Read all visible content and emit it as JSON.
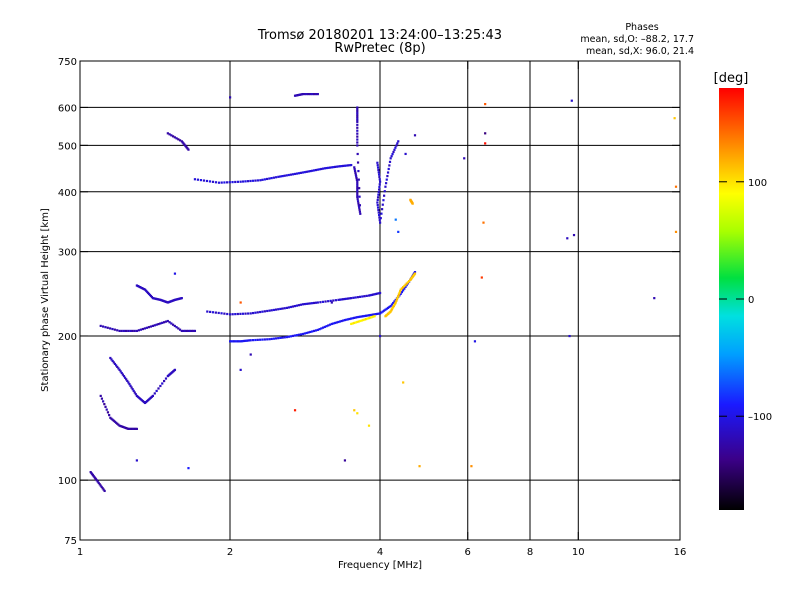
{
  "chart_data": {
    "type": "scatter",
    "title": "Tromsø 20180201 13:24:00–13:25:43",
    "subtitle": "RwPretec (8p)",
    "phases_header": "Phases",
    "phases_line1": "mean, sd,O: –88.2, 17.7",
    "phases_line2": "mean, sd,X:  96.0, 21.4",
    "xlabel": "Frequency [MHz]",
    "ylabel": "Stationary phase Virtual Height [km]",
    "x_scale": "log",
    "y_scale": "log",
    "xlim": [
      1,
      16
    ],
    "ylim": [
      75,
      750
    ],
    "x_ticks": [
      1,
      2,
      4,
      6,
      8,
      10,
      16
    ],
    "x_tick_labels": [
      "1",
      "2",
      "4",
      "6",
      "8",
      "10",
      "16"
    ],
    "y_ticks": [
      75,
      100,
      200,
      300,
      400,
      500,
      600,
      750
    ],
    "y_tick_labels": [
      "75",
      "100",
      "200",
      "300",
      "400",
      "500",
      "600",
      "750"
    ],
    "x_gridlines": [
      2,
      4,
      6,
      8,
      10
    ],
    "y_gridlines": [
      100,
      200,
      300,
      400,
      500,
      600
    ],
    "colorbar": {
      "label": "[deg]",
      "range": [
        -180,
        180
      ],
      "ticks": [
        100,
        0,
        -100
      ],
      "tick_labels": [
        "100",
        "0",
        "–100"
      ]
    },
    "series": [
      {
        "points": [
          [
            2.0,
            195
          ],
          [
            2.1,
            195
          ],
          [
            2.2,
            196
          ],
          [
            2.4,
            197
          ],
          [
            2.6,
            199
          ],
          [
            2.8,
            202
          ],
          [
            3.0,
            206
          ],
          [
            3.2,
            212
          ],
          [
            3.4,
            216
          ],
          [
            3.6,
            219
          ],
          [
            3.8,
            221
          ],
          [
            4.0,
            223
          ],
          [
            4.2,
            231
          ],
          [
            4.4,
            245
          ],
          [
            4.6,
            262
          ],
          [
            4.7,
            272
          ]
        ],
        "phase": -95
      },
      {
        "points": [
          [
            1.8,
            225
          ],
          [
            2.0,
            222
          ],
          [
            2.2,
            223
          ],
          [
            2.4,
            226
          ],
          [
            2.6,
            229
          ],
          [
            2.8,
            233
          ],
          [
            3.0,
            235
          ],
          [
            3.3,
            238
          ],
          [
            3.5,
            240
          ],
          [
            3.8,
            243
          ],
          [
            4.0,
            246
          ]
        ],
        "phase": -110
      },
      {
        "points": [
          [
            1.7,
            425
          ],
          [
            1.9,
            418
          ],
          [
            2.1,
            420
          ],
          [
            2.3,
            423
          ],
          [
            2.5,
            430
          ],
          [
            2.7,
            436
          ],
          [
            2.9,
            442
          ],
          [
            3.1,
            448
          ],
          [
            3.3,
            452
          ],
          [
            3.5,
            455
          ]
        ],
        "phase": -105
      },
      {
        "points": [
          [
            3.55,
            450
          ],
          [
            3.6,
            420
          ],
          [
            3.6,
            390
          ],
          [
            3.65,
            360
          ],
          [
            3.6,
            500
          ],
          [
            3.6,
            560
          ],
          [
            3.6,
            600
          ]
        ],
        "phase": -120
      },
      {
        "points": [
          [
            3.95,
            460
          ],
          [
            4.0,
            420
          ],
          [
            3.95,
            380
          ],
          [
            4.0,
            345
          ],
          [
            4.1,
            410
          ],
          [
            4.2,
            470
          ],
          [
            4.35,
            510
          ]
        ],
        "phase": -110
      },
      {
        "points": [
          [
            1.1,
            210
          ],
          [
            1.2,
            205
          ],
          [
            1.3,
            205
          ],
          [
            1.4,
            210
          ],
          [
            1.5,
            215
          ],
          [
            1.6,
            205
          ],
          [
            1.7,
            205
          ]
        ],
        "phase": -120
      },
      {
        "points": [
          [
            1.15,
            180
          ],
          [
            1.2,
            170
          ],
          [
            1.25,
            160
          ],
          [
            1.3,
            150
          ],
          [
            1.35,
            145
          ],
          [
            1.4,
            150
          ],
          [
            1.5,
            165
          ],
          [
            1.55,
            170
          ]
        ],
        "phase": -115
      },
      {
        "points": [
          [
            1.1,
            150
          ],
          [
            1.15,
            135
          ],
          [
            1.2,
            130
          ],
          [
            1.25,
            128
          ],
          [
            1.3,
            128
          ]
        ],
        "phase": -125
      },
      {
        "points": [
          [
            1.3,
            255
          ],
          [
            1.35,
            250
          ],
          [
            1.4,
            240
          ],
          [
            1.45,
            238
          ],
          [
            1.5,
            235
          ],
          [
            1.55,
            238
          ],
          [
            1.6,
            240
          ]
        ],
        "phase": -115
      },
      {
        "points": [
          [
            4.1,
            220
          ],
          [
            4.2,
            225
          ],
          [
            4.3,
            235
          ],
          [
            4.4,
            250
          ],
          [
            4.6,
            262
          ],
          [
            4.7,
            270
          ]
        ],
        "phase": 110
      },
      {
        "points": [
          [
            3.5,
            212
          ],
          [
            3.7,
            216
          ],
          [
            3.9,
            220
          ]
        ],
        "phase": 95
      },
      {
        "points": [
          [
            4.6,
            385
          ],
          [
            4.65,
            378
          ]
        ],
        "phase": 120
      },
      {
        "points": [
          [
            2.7,
            635
          ],
          [
            2.8,
            640
          ],
          [
            3.0,
            640
          ]
        ],
        "phase": -120
      },
      {
        "points": [
          [
            1.5,
            530
          ],
          [
            1.6,
            510
          ],
          [
            1.65,
            490
          ]
        ],
        "phase": -125
      },
      {
        "points": [
          [
            1.05,
            104
          ],
          [
            1.08,
            100
          ],
          [
            1.12,
            95
          ]
        ],
        "phase": -125
      }
    ],
    "scatter_points": [
      [
        6.5,
        610,
        150
      ],
      [
        6.5,
        530,
        -140
      ],
      [
        6.5,
        505,
        175
      ],
      [
        6.45,
        345,
        140
      ],
      [
        6.4,
        265,
        160
      ],
      [
        9.5,
        320,
        -115
      ],
      [
        9.8,
        325,
        -120
      ],
      [
        9.6,
        200,
        -110
      ],
      [
        9.7,
        620,
        -110
      ],
      [
        14.2,
        240,
        -120
      ],
      [
        15.6,
        570,
        110
      ],
      [
        15.7,
        330,
        130
      ],
      [
        15.7,
        410,
        140
      ],
      [
        6.1,
        107,
        130
      ],
      [
        6.2,
        195,
        -100
      ],
      [
        4.45,
        160,
        110
      ],
      [
        4.8,
        107,
        120
      ],
      [
        3.4,
        110,
        -130
      ],
      [
        3.55,
        140,
        110
      ],
      [
        3.6,
        138,
        100
      ],
      [
        3.2,
        235,
        -120
      ],
      [
        2.2,
        183,
        -120
      ],
      [
        2.1,
        170,
        -110
      ],
      [
        2.1,
        235,
        150
      ],
      [
        2.7,
        140,
        170
      ],
      [
        1.65,
        106,
        -90
      ],
      [
        1.3,
        110,
        -110
      ],
      [
        4.3,
        350,
        -60
      ],
      [
        4.7,
        525,
        -120
      ],
      [
        4.5,
        480,
        -110
      ],
      [
        2.0,
        630,
        -120
      ],
      [
        3.8,
        130,
        100
      ],
      [
        4.0,
        200,
        -110
      ],
      [
        5.9,
        470,
        -120
      ],
      [
        1.55,
        270,
        -100
      ],
      [
        4.35,
        330,
        -80
      ]
    ]
  }
}
